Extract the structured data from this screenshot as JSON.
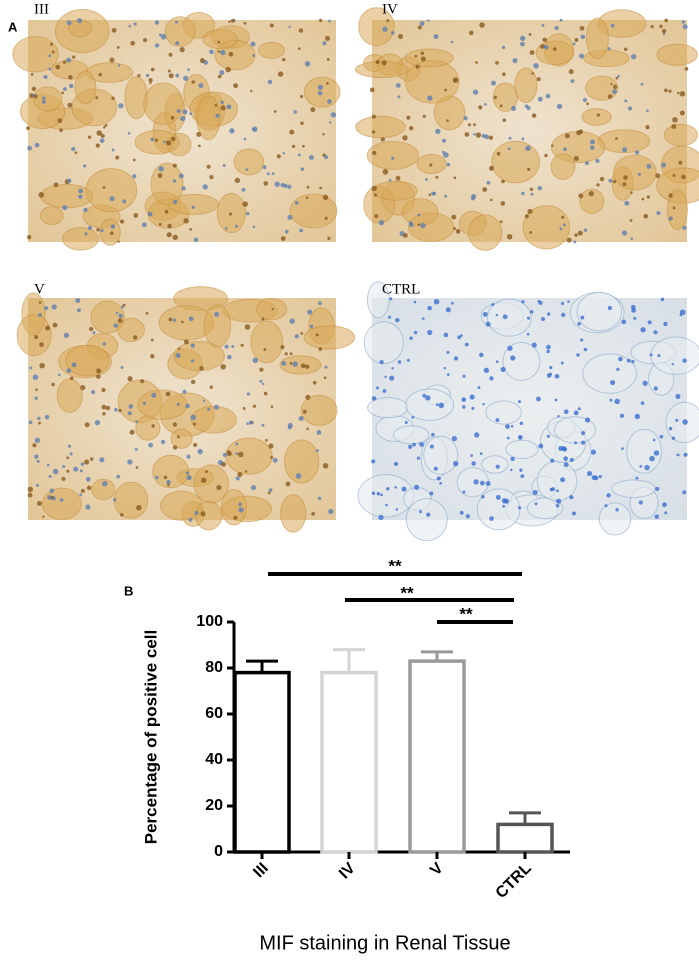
{
  "figure": {
    "panel_a": "A",
    "panel_b": "B",
    "images": [
      "III",
      "IV",
      "V",
      "CTRL"
    ]
  },
  "chart_data": {
    "type": "bar",
    "categories": [
      "III",
      "IV",
      "V",
      "CTRL"
    ],
    "values": [
      78,
      78,
      83,
      12
    ],
    "errors": [
      5,
      10,
      4,
      5
    ],
    "colors": [
      "#000000",
      "#d4d4d4",
      "#9a9a9a",
      "#555555"
    ],
    "ylim": [
      0,
      100
    ],
    "yticks": [
      0,
      20,
      40,
      60,
      80,
      100
    ],
    "ylabel": "Percentage of positive cell",
    "xlabel": "MIF staining in Renal Tissue",
    "annotations": [
      "**",
      "**",
      "**"
    ]
  }
}
